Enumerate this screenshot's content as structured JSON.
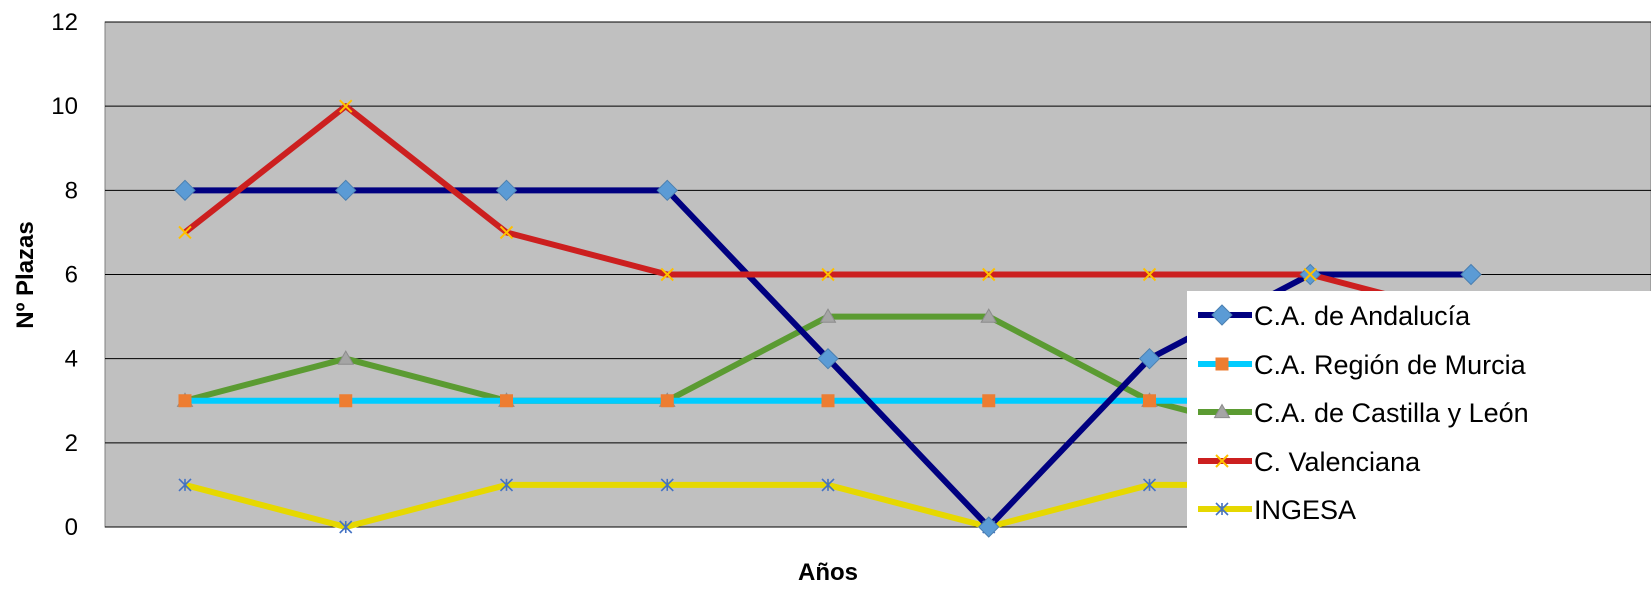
{
  "chart_data": {
    "type": "line",
    "title": "",
    "xlabel": "Años",
    "ylabel": "Nº Plazas",
    "ylim": [
      0,
      12
    ],
    "yticks": [
      0,
      2,
      4,
      6,
      8,
      10,
      12
    ],
    "x": [
      1,
      2,
      3,
      4,
      5,
      6,
      7,
      8,
      9
    ],
    "grid": true,
    "legend_position": "right",
    "plot_background": "#c0c0c0",
    "series": [
      {
        "name": "C.A. de Andalucía",
        "color": "#000080",
        "marker": "diamond",
        "marker_color": "#5b9bd5",
        "values": [
          8,
          8,
          8,
          8,
          4,
          0,
          4,
          6,
          6
        ]
      },
      {
        "name": "C.A. Región de Murcia",
        "color": "#00ccff",
        "marker": "square",
        "marker_color": "#ed7d31",
        "values": [
          3,
          3,
          3,
          3,
          3,
          3,
          3,
          3,
          3
        ]
      },
      {
        "name": "C.A. de Castilla y León",
        "color": "#5b9b32",
        "marker": "triangle",
        "marker_color": "#a5a5a5",
        "values": [
          3,
          4,
          3,
          3,
          5,
          5,
          3,
          2,
          2
        ]
      },
      {
        "name": "C. Valenciana",
        "color": "#cc1f1f",
        "marker": "x",
        "marker_color": "#ffc000",
        "values": [
          7,
          10,
          7,
          6,
          6,
          6,
          6,
          6,
          5
        ]
      },
      {
        "name": "INGESA",
        "color": "#e6d800",
        "marker": "star",
        "marker_color": "#4472c4",
        "values": [
          1,
          0,
          1,
          1,
          1,
          0,
          1,
          1,
          1
        ]
      }
    ]
  }
}
